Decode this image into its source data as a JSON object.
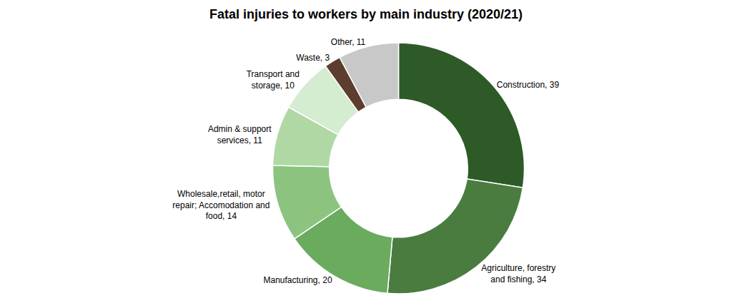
{
  "chart_data": {
    "type": "donut",
    "title": "Fatal injuries to workers by main industry (2020/21)",
    "categories": [
      "Construction",
      "Agriculture, forestry\nand fishing",
      "Manufacturing",
      "Wholesale,retail, motor\nrepair; Accomodation and\nfood",
      "Admin & support\nservices",
      "Transport and\nstorage",
      "Waste",
      "Other"
    ],
    "values": [
      39,
      34,
      20,
      14,
      11,
      10,
      3,
      11
    ],
    "colors": [
      "#2d5a27",
      "#4a7c40",
      "#6aab5e",
      "#8cc47f",
      "#b0d8a4",
      "#d4ecd0",
      "#5c3d2e",
      "#c8c8c8"
    ],
    "data_labels": true,
    "value_labels": [
      "Construction, 39",
      "Agriculture, forestry\nand fishing, 34",
      "Manufacturing, 20",
      "Wholesale,retail, motor\nrepair; Accomodation and\nfood, 14",
      "Admin & support\nservices, 11",
      "Transport and\nstorage, 10",
      "Waste, 3",
      "Other, 11"
    ]
  }
}
